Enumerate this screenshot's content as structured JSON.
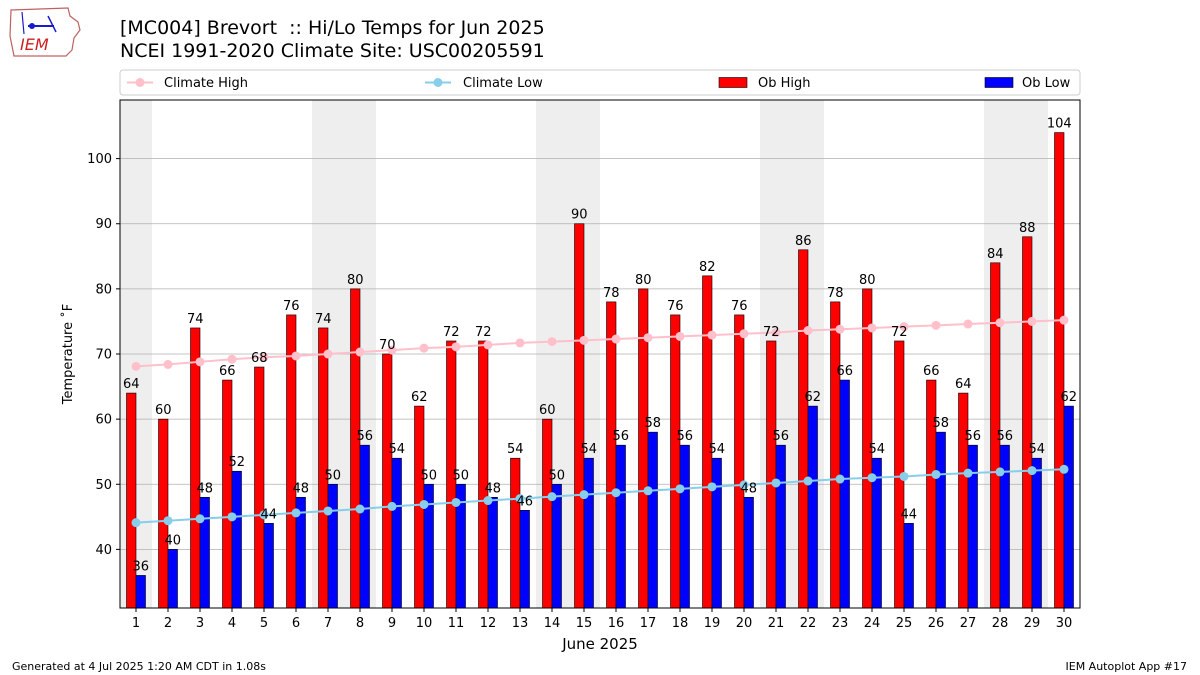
{
  "header": {
    "title_line1": "[MC004] Brevort  :: Hi/Lo Temps for Jun 2025",
    "title_line2": "NCEI 1991-2020 Climate Site: USC00205591",
    "logo_text": "IEM"
  },
  "footer": {
    "generated": "Generated at 4 Jul 2025 1:20 AM CDT in 1.08s",
    "app": "IEM Autoplot App #17"
  },
  "colors": {
    "ob_high": "#ff0000",
    "ob_low": "#0000ff",
    "climate_high": "#ffc0cb",
    "climate_low": "#87ceeb",
    "weekend_shade": "#eeeeee",
    "grid": "#b0b0b0"
  },
  "chart_data": {
    "type": "bar",
    "title": "[MC004] Brevort  :: Hi/Lo Temps for Jun 2025",
    "subtitle": "NCEI 1991-2020 Climate Site: USC00205591",
    "xlabel": "June 2025",
    "ylabel": "Temperature ˚F",
    "ylim": [
      31,
      109
    ],
    "yticks": [
      40,
      50,
      60,
      70,
      80,
      90,
      100
    ],
    "grid": "y",
    "legend_placement": "top",
    "categories": [
      "1",
      "2",
      "3",
      "4",
      "5",
      "6",
      "7",
      "8",
      "9",
      "10",
      "11",
      "12",
      "13",
      "14",
      "15",
      "16",
      "17",
      "18",
      "19",
      "20",
      "21",
      "22",
      "23",
      "24",
      "25",
      "26",
      "27",
      "28",
      "29",
      "30"
    ],
    "shaded_days": [
      1,
      7,
      8,
      14,
      15,
      21,
      22,
      28,
      29
    ],
    "series": [
      {
        "name": "Ob High",
        "kind": "bar",
        "values": [
          64,
          60,
          74,
          66,
          68,
          76,
          74,
          80,
          70,
          62,
          72,
          72,
          54,
          60,
          90,
          78,
          80,
          76,
          82,
          76,
          72,
          86,
          78,
          80,
          72,
          66,
          64,
          84,
          88,
          104
        ]
      },
      {
        "name": "Ob Low",
        "kind": "bar",
        "values": [
          36,
          40,
          48,
          52,
          44,
          48,
          50,
          56,
          54,
          50,
          50,
          48,
          46,
          50,
          54,
          56,
          58,
          56,
          54,
          48,
          56,
          62,
          66,
          54,
          44,
          58,
          56,
          56,
          54,
          62
        ]
      },
      {
        "name": "Climate High",
        "kind": "line",
        "values": [
          68.1,
          68.4,
          68.8,
          69.2,
          69.5,
          69.7,
          70.0,
          70.3,
          70.6,
          70.9,
          71.1,
          71.4,
          71.7,
          71.9,
          72.1,
          72.3,
          72.5,
          72.7,
          72.9,
          73.1,
          73.3,
          73.6,
          73.8,
          74.0,
          74.2,
          74.4,
          74.6,
          74.8,
          75.0,
          75.2
        ]
      },
      {
        "name": "Climate Low",
        "kind": "line",
        "values": [
          44.1,
          44.4,
          44.7,
          45.0,
          45.3,
          45.6,
          45.9,
          46.2,
          46.6,
          46.9,
          47.2,
          47.5,
          47.8,
          48.1,
          48.4,
          48.7,
          49.0,
          49.3,
          49.6,
          49.9,
          50.2,
          50.5,
          50.8,
          51.0,
          51.2,
          51.5,
          51.7,
          51.9,
          52.1,
          52.3
        ]
      }
    ]
  }
}
